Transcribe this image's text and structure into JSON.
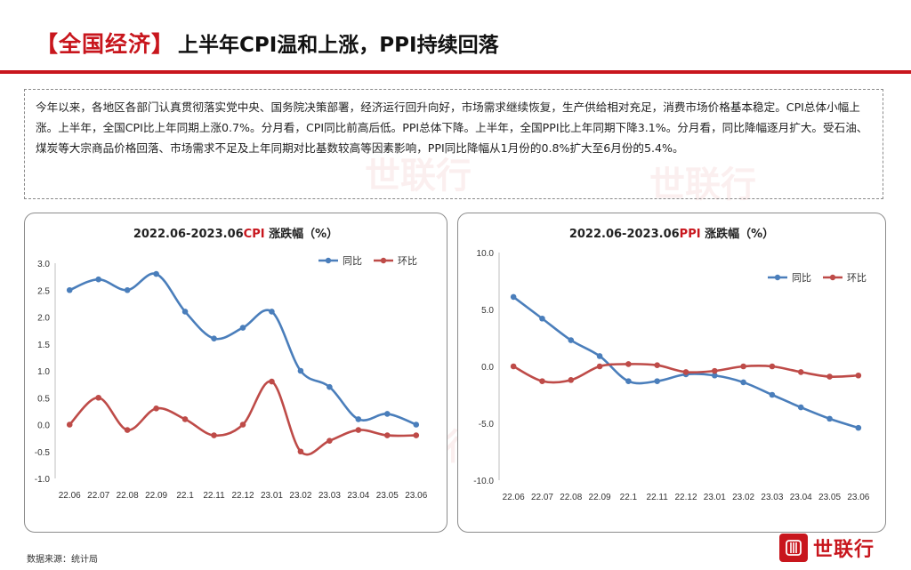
{
  "header": {
    "tag": "【全国经济】",
    "title": "上半年CPI温和上涨，PPI持续回落"
  },
  "summary": "今年以来，各地区各部门认真贯彻落实党中央、国务院决策部署，经济运行回升向好，市场需求继续恢复，生产供给相对充足，消费市场价格基本稳定。CPI总体小幅上涨。上半年，全国CPI比上年同期上涨0.7%。分月看，CPI同比前高后低。PPI总体下降。上半年，全国PPI比上年同期下降3.1%。分月看，同比降幅逐月扩大。受石油、煤炭等大宗商品价格回落、市场需求不足及上年同期对比基数较高等因素影响，PPI同比降幅从1月份的0.8%扩大至6月份的5.4%。",
  "footer": {
    "source": "数据来源：统计局",
    "logo_text": "世联行"
  },
  "watermark": "世联行",
  "colors": {
    "accent": "#c8161d",
    "yoy": "#4a7ebb",
    "mom": "#be4b48"
  },
  "chart_data": [
    {
      "type": "line",
      "title_prefix": "2022.06-2023.06",
      "title_accent": "CPI",
      "title_suffix": " 涨跌幅（%）",
      "categories": [
        "22.06",
        "22.07",
        "22.08",
        "22.09",
        "22.1",
        "22.11",
        "22.12",
        "23.01",
        "23.02",
        "23.03",
        "23.04",
        "23.05",
        "23.06"
      ],
      "ylim": [
        -1.0,
        3.0
      ],
      "yticks": [
        "3.0",
        "2.5",
        "2.0",
        "1.5",
        "1.0",
        "0.5",
        "0.0",
        "-0.5",
        "-1.0"
      ],
      "legend_position": "top-right",
      "series": [
        {
          "name": "同比",
          "values": [
            2.5,
            2.7,
            2.5,
            2.8,
            2.1,
            1.6,
            1.8,
            2.1,
            1.0,
            0.7,
            0.1,
            0.2,
            0.0
          ]
        },
        {
          "name": "环比",
          "values": [
            0.0,
            0.5,
            -0.1,
            0.3,
            0.1,
            -0.2,
            0.0,
            0.8,
            -0.5,
            -0.3,
            -0.1,
            -0.2,
            -0.2
          ]
        }
      ]
    },
    {
      "type": "line",
      "title_prefix": "2022.06-2023.06",
      "title_accent": "PPI",
      "title_suffix": " 涨跌幅（%）",
      "categories": [
        "22.06",
        "22.07",
        "22.08",
        "22.09",
        "22.1",
        "22.11",
        "22.12",
        "23.01",
        "23.02",
        "23.03",
        "23.04",
        "23.05",
        "23.06"
      ],
      "ylim": [
        -10.0,
        10.0
      ],
      "yticks": [
        "10.0",
        "5.0",
        "0.0",
        "-5.0",
        "-10.0"
      ],
      "legend_position": "top-right",
      "series": [
        {
          "name": "同比",
          "values": [
            6.1,
            4.2,
            2.3,
            0.9,
            -1.3,
            -1.3,
            -0.7,
            -0.8,
            -1.4,
            -2.5,
            -3.6,
            -4.6,
            -5.4
          ]
        },
        {
          "name": "环比",
          "values": [
            0.0,
            -1.3,
            -1.2,
            0.0,
            0.2,
            0.1,
            -0.5,
            -0.4,
            0.0,
            0.0,
            -0.5,
            -0.9,
            -0.8
          ]
        }
      ]
    }
  ]
}
